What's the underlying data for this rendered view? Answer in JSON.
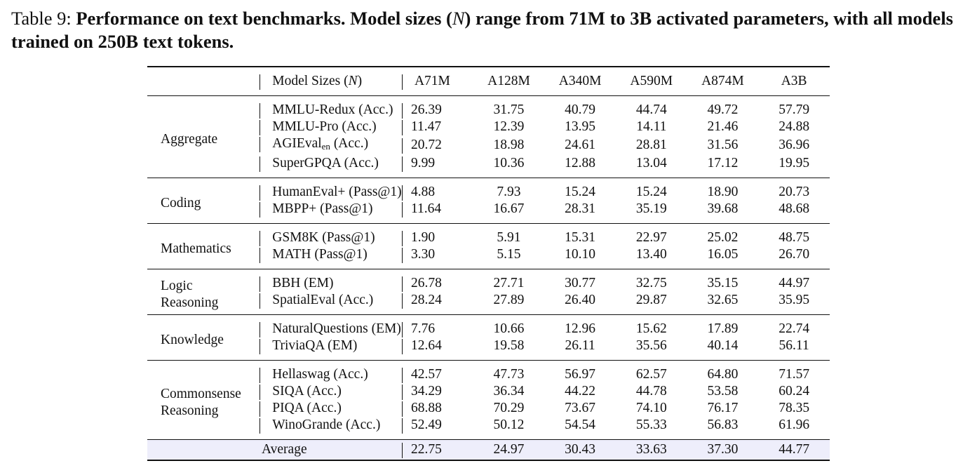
{
  "caption": {
    "label": "Table 9:",
    "text_before": "Performance on text benchmarks. Model sizes (",
    "text_var": "N",
    "text_after": ") range from 71M to 3B activated parameters, with all models trained on 250B text tokens."
  },
  "table": {
    "header": {
      "model_sizes_label": "Model Sizes (",
      "model_sizes_var": "N",
      "model_sizes_close": ")",
      "columns": [
        "A71M",
        "A128M",
        "A340M",
        "A590M",
        "A874M",
        "A3B"
      ]
    },
    "groups": [
      {
        "category": "Aggregate",
        "rows": [
          {
            "benchmark": "MMLU-Redux (Acc.)",
            "values": [
              "26.39",
              "31.75",
              "40.79",
              "44.74",
              "49.72",
              "57.79"
            ]
          },
          {
            "benchmark": "MMLU-Pro (Acc.)",
            "values": [
              "11.47",
              "12.39",
              "13.95",
              "14.11",
              "21.46",
              "24.88"
            ]
          },
          {
            "benchmark_main": "AGIEval",
            "benchmark_sub": "en",
            "benchmark_tail": " (Acc.)",
            "values": [
              "20.72",
              "18.98",
              "24.61",
              "28.81",
              "31.56",
              "36.96"
            ]
          },
          {
            "benchmark": "SuperGPQA (Acc.)",
            "values": [
              "9.99",
              "10.36",
              "12.88",
              "13.04",
              "17.12",
              "19.95"
            ]
          }
        ]
      },
      {
        "category": "Coding",
        "rows": [
          {
            "benchmark": "HumanEval+ (Pass@1)",
            "values": [
              "4.88",
              "7.93",
              "15.24",
              "15.24",
              "18.90",
              "20.73"
            ]
          },
          {
            "benchmark": "MBPP+ (Pass@1)",
            "values": [
              "11.64",
              "16.67",
              "28.31",
              "35.19",
              "39.68",
              "48.68"
            ]
          }
        ]
      },
      {
        "category": "Mathematics",
        "rows": [
          {
            "benchmark": "GSM8K (Pass@1)",
            "values": [
              "1.90",
              "5.91",
              "15.31",
              "22.97",
              "25.02",
              "48.75"
            ]
          },
          {
            "benchmark": "MATH (Pass@1)",
            "values": [
              "3.30",
              "5.15",
              "10.10",
              "13.40",
              "16.05",
              "26.70"
            ]
          }
        ]
      },
      {
        "category_line1": "Logic",
        "category_line2": "Reasoning",
        "rows": [
          {
            "benchmark": "BBH (EM)",
            "values": [
              "26.78",
              "27.71",
              "30.77",
              "32.75",
              "35.15",
              "44.97"
            ]
          },
          {
            "benchmark": "SpatialEval (Acc.)",
            "values": [
              "28.24",
              "27.89",
              "26.40",
              "29.87",
              "32.65",
              "35.95"
            ]
          }
        ]
      },
      {
        "category": "Knowledge",
        "rows": [
          {
            "benchmark": "NaturalQuestions (EM)",
            "values": [
              "7.76",
              "10.66",
              "12.96",
              "15.62",
              "17.89",
              "22.74"
            ]
          },
          {
            "benchmark": "TriviaQA (EM)",
            "values": [
              "12.64",
              "19.58",
              "26.11",
              "35.56",
              "40.14",
              "56.11"
            ]
          }
        ]
      },
      {
        "category_line1": "Commonsense",
        "category_line2": "Reasoning",
        "rows": [
          {
            "benchmark": "Hellaswag (Acc.)",
            "values": [
              "42.57",
              "47.73",
              "56.97",
              "62.57",
              "64.80",
              "71.57"
            ]
          },
          {
            "benchmark": "SIQA (Acc.)",
            "values": [
              "34.29",
              "36.34",
              "44.22",
              "44.78",
              "53.58",
              "60.24"
            ]
          },
          {
            "benchmark": "PIQA (Acc.)",
            "values": [
              "68.88",
              "70.29",
              "73.67",
              "74.10",
              "76.17",
              "78.35"
            ]
          },
          {
            "benchmark": "WinoGrande (Acc.)",
            "values": [
              "52.49",
              "50.12",
              "54.54",
              "55.33",
              "56.83",
              "61.96"
            ]
          }
        ]
      }
    ],
    "average": {
      "label": "Average",
      "values": [
        "22.75",
        "24.97",
        "30.43",
        "33.63",
        "37.30",
        "44.77"
      ]
    },
    "colors": {
      "average_row_bg": "#eeeefb",
      "rule": "#111111"
    }
  }
}
